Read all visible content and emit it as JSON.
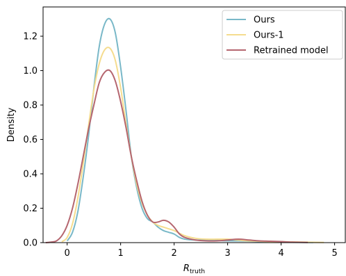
{
  "chart_data": {
    "type": "line",
    "xlabel_main": "R",
    "xlabel_sub": "truth",
    "ylabel": "Density",
    "xlim": [
      -0.45,
      5.2
    ],
    "ylim": [
      0,
      1.37
    ],
    "xticks": [
      0,
      1,
      2,
      3,
      4,
      5
    ],
    "xtick_labels": [
      "0",
      "1",
      "2",
      "3",
      "4",
      "5"
    ],
    "yticks": [
      0.0,
      0.2,
      0.4,
      0.6,
      0.8,
      1.0,
      1.2
    ],
    "ytick_labels": [
      "0.0",
      "0.2",
      "0.4",
      "0.6",
      "0.8",
      "1.0",
      "1.2"
    ],
    "legend_position": "top-right",
    "grid": false,
    "series": [
      {
        "name": "Ours",
        "color": "#79b8c8",
        "x": [
          0.0,
          0.1,
          0.2,
          0.3,
          0.4,
          0.5,
          0.6,
          0.7,
          0.8,
          0.9,
          1.0,
          1.1,
          1.2,
          1.3,
          1.4,
          1.5,
          1.6,
          1.7,
          1.8,
          1.9,
          2.0,
          2.1,
          2.2,
          2.4,
          2.6,
          2.8,
          3.0,
          3.2,
          3.4,
          3.8,
          4.2,
          4.6
        ],
        "y": [
          0.01,
          0.06,
          0.18,
          0.38,
          0.62,
          0.9,
          1.14,
          1.27,
          1.3,
          1.22,
          1.02,
          0.77,
          0.5,
          0.32,
          0.2,
          0.14,
          0.12,
          0.09,
          0.07,
          0.06,
          0.05,
          0.03,
          0.02,
          0.015,
          0.015,
          0.012,
          0.01,
          0.01,
          0.008,
          0.004,
          0.002,
          0.001
        ]
      },
      {
        "name": "Ours-1",
        "color": "#f5dc8e",
        "x": [
          -0.1,
          0.0,
          0.1,
          0.2,
          0.3,
          0.4,
          0.5,
          0.6,
          0.7,
          0.8,
          0.9,
          1.0,
          1.1,
          1.2,
          1.3,
          1.4,
          1.5,
          1.6,
          1.7,
          1.8,
          1.9,
          2.0,
          2.2,
          2.4,
          2.6,
          2.8,
          3.0,
          3.2,
          3.4,
          3.8,
          4.2,
          4.6,
          4.8
        ],
        "y": [
          0.005,
          0.03,
          0.11,
          0.26,
          0.46,
          0.68,
          0.89,
          1.04,
          1.12,
          1.13,
          1.06,
          0.9,
          0.69,
          0.5,
          0.34,
          0.23,
          0.16,
          0.12,
          0.1,
          0.09,
          0.08,
          0.07,
          0.04,
          0.025,
          0.02,
          0.02,
          0.02,
          0.015,
          0.01,
          0.006,
          0.004,
          0.002,
          0.001
        ]
      },
      {
        "name": "Retrained model",
        "color": "#b5666f",
        "x": [
          -0.4,
          -0.3,
          -0.2,
          -0.1,
          0.0,
          0.1,
          0.2,
          0.3,
          0.4,
          0.5,
          0.6,
          0.7,
          0.8,
          0.9,
          1.0,
          1.1,
          1.2,
          1.3,
          1.4,
          1.5,
          1.6,
          1.7,
          1.8,
          1.9,
          2.0,
          2.1,
          2.2,
          2.4,
          2.6,
          2.8,
          3.0,
          3.2,
          3.4,
          3.6,
          3.8,
          4.0,
          4.2,
          4.5
        ],
        "y": [
          0.0,
          0.003,
          0.01,
          0.04,
          0.1,
          0.2,
          0.34,
          0.5,
          0.66,
          0.8,
          0.93,
          0.99,
          1.0,
          0.94,
          0.82,
          0.67,
          0.5,
          0.36,
          0.24,
          0.16,
          0.12,
          0.12,
          0.13,
          0.12,
          0.09,
          0.05,
          0.03,
          0.015,
          0.01,
          0.01,
          0.015,
          0.02,
          0.015,
          0.01,
          0.008,
          0.006,
          0.003,
          0.001
        ]
      }
    ]
  }
}
